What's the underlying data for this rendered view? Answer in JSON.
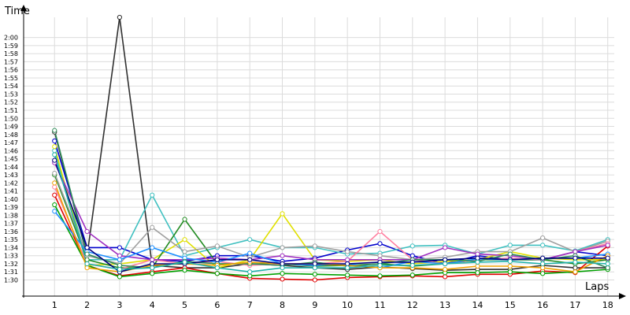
{
  "chart_data": {
    "type": "line",
    "ylabel": "Time",
    "xlabel": "Laps",
    "grid": true,
    "legend": "none",
    "x": [
      1,
      2,
      3,
      4,
      5,
      6,
      7,
      8,
      9,
      10,
      11,
      12,
      13,
      14,
      15,
      16,
      17,
      18
    ],
    "xticks": [
      "1",
      "2",
      "3",
      "4",
      "5",
      "6",
      "7",
      "8",
      "9",
      "10",
      "11",
      "12",
      "13",
      "14",
      "15",
      "16",
      "17",
      "18"
    ],
    "yticks": [
      "1:30",
      "1:31",
      "1:32",
      "1:33",
      "1:34",
      "1:35",
      "1:36",
      "1:37",
      "1:38",
      "1:39",
      "1:40",
      "1:41",
      "1:42",
      "1:43",
      "1:44",
      "1:45",
      "1:46",
      "1:47",
      "1:48",
      "1:49",
      "1:50",
      "1:51",
      "1:52",
      "1:53",
      "1:54",
      "1:55",
      "1:56",
      "1:57",
      "1:58",
      "1:59",
      "2:00"
    ],
    "ytick_values": [
      90,
      91,
      92,
      93,
      94,
      95,
      96,
      97,
      98,
      99,
      100,
      101,
      102,
      103,
      104,
      105,
      106,
      107,
      108,
      109,
      110,
      111,
      112,
      113,
      114,
      115,
      116,
      117,
      118,
      119,
      120
    ],
    "ylim": [
      88,
      122.5
    ],
    "xlim": [
      0.05,
      18.2
    ],
    "series": [
      {
        "color": "#303030",
        "values": [
          108.3,
          93.0,
          122.5,
          91.8,
          91.5,
          91.5,
          92.0,
          91.8,
          91.5,
          91.3,
          91.6,
          91.4,
          91.2,
          91.3,
          91.3,
          91.8,
          91.5,
          91.5
        ]
      },
      {
        "color": "#0000cc",
        "values": [
          107.2,
          94.0,
          94.0,
          92.5,
          92.3,
          93.0,
          93.0,
          92.3,
          92.7,
          93.7,
          94.5,
          93.0,
          92.0,
          93.0,
          92.5,
          92.5,
          93.5,
          93.0
        ]
      },
      {
        "color": "#e00000",
        "values": [
          100.5,
          91.8,
          90.5,
          91.0,
          91.5,
          90.8,
          90.2,
          90.1,
          90.0,
          90.3,
          90.4,
          90.5,
          90.4,
          90.7,
          90.7,
          91.1,
          90.9,
          94.2
        ]
      },
      {
        "color": "#00a000",
        "values": [
          99.3,
          91.8,
          90.4,
          90.8,
          91.2,
          90.8,
          90.5,
          90.8,
          90.7,
          90.6,
          90.5,
          90.6,
          90.9,
          90.9,
          91.0,
          90.8,
          91.0,
          91.3
        ]
      },
      {
        "color": "#40c0c0",
        "values": [
          106.0,
          92.5,
          92.5,
          100.5,
          93.0,
          94.0,
          95.0,
          94.0,
          94.0,
          93.2,
          93.3,
          94.2,
          94.3,
          93.2,
          94.3,
          94.3,
          93.6,
          95.0
        ]
      },
      {
        "color": "#e0e000",
        "values": [
          106.5,
          91.8,
          92.0,
          92.5,
          95.0,
          91.5,
          92.5,
          98.2,
          92.5,
          92.3,
          92.5,
          92.0,
          92.3,
          92.5,
          93.5,
          92.7,
          92.5,
          92.5
        ]
      },
      {
        "color": "#228B22",
        "values": [
          103.0,
          92.5,
          91.5,
          91.5,
          97.5,
          92.0,
          92.0,
          92.0,
          91.7,
          91.8,
          92.0,
          91.7,
          92.0,
          92.5,
          92.5,
          92.5,
          92.0,
          92.5
        ]
      },
      {
        "color": "#a0a0a0",
        "values": [
          103.2,
          93.0,
          92.0,
          96.5,
          93.5,
          94.2,
          92.8,
          94.0,
          94.2,
          93.5,
          93.0,
          92.5,
          92.8,
          93.5,
          93.5,
          95.2,
          93.5,
          94.8
        ]
      },
      {
        "color": "#ff80a0",
        "values": [
          101.5,
          92.0,
          91.3,
          92.5,
          92.0,
          92.3,
          91.8,
          92.0,
          92.0,
          92.3,
          96.0,
          92.5,
          92.0,
          92.5,
          92.7,
          92.5,
          93.5,
          94.5
        ]
      },
      {
        "color": "#a030c0",
        "values": [
          104.5,
          96.0,
          93.0,
          92.5,
          92.5,
          92.7,
          92.5,
          93.0,
          92.5,
          92.5,
          92.5,
          92.5,
          94.0,
          93.2,
          93.0,
          92.5,
          93.5,
          94.3
        ]
      },
      {
        "color": "#1e90ff",
        "values": [
          98.5,
          93.5,
          92.5,
          94.0,
          92.7,
          92.2,
          93.3,
          92.0,
          91.8,
          92.0,
          91.5,
          92.3,
          92.0,
          92.6,
          92.5,
          92.7,
          92.7,
          93.2
        ]
      },
      {
        "color": "#2e8b57",
        "values": [
          108.5,
          93.2,
          91.8,
          91.5,
          92.3,
          92.0,
          92.0,
          91.8,
          92.2,
          91.7,
          92.0,
          92.5,
          92.5,
          92.3,
          93.2,
          92.5,
          93.0,
          91.5
        ]
      },
      {
        "color": "#f0a000",
        "values": [
          102.0,
          91.5,
          91.0,
          91.8,
          92.0,
          91.8,
          92.2,
          92.0,
          92.0,
          91.8,
          91.5,
          91.5,
          91.3,
          91.7,
          91.7,
          91.5,
          91.0,
          93.0
        ]
      },
      {
        "color": "#000080",
        "values": [
          104.8,
          94.0,
          91.0,
          92.0,
          92.0,
          92.5,
          92.5,
          92.0,
          92.0,
          92.0,
          92.2,
          92.2,
          92.5,
          92.7,
          92.5,
          92.7,
          92.7,
          92.7
        ]
      },
      {
        "color": "#20b2aa",
        "values": [
          105.5,
          92.0,
          91.3,
          91.5,
          92.2,
          91.5,
          91.0,
          91.5,
          91.5,
          91.5,
          91.8,
          91.8,
          92.0,
          92.2,
          92.3,
          92.0,
          92.2,
          92.0
        ]
      }
    ]
  }
}
